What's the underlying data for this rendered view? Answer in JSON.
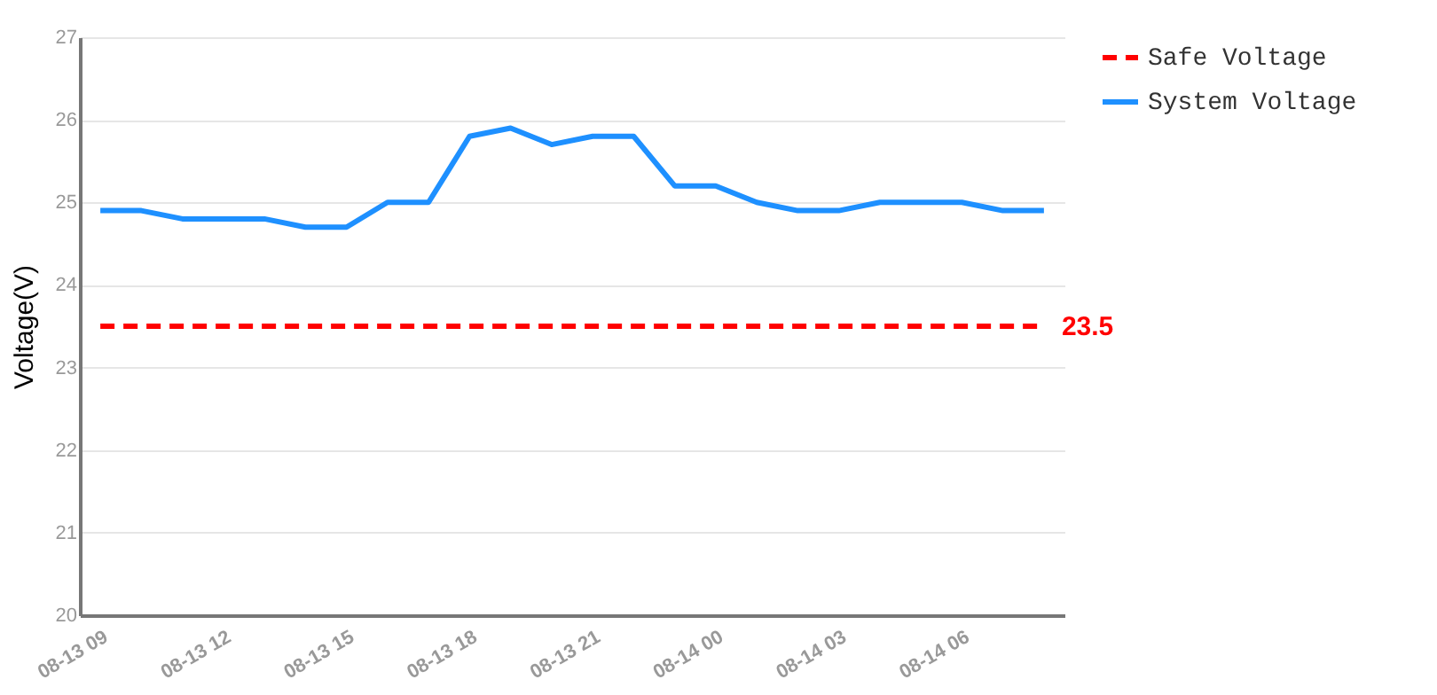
{
  "chart_data": {
    "type": "line",
    "ylabel": "Voltage(V)",
    "categories": [
      "08-13 09",
      null,
      null,
      "08-13 12",
      null,
      null,
      "08-13 15",
      null,
      null,
      "08-13 18",
      null,
      null,
      "08-13 21",
      null,
      null,
      "08-14 00",
      null,
      null,
      "08-14 03",
      null,
      null,
      "08-14 06",
      null,
      null
    ],
    "series": [
      {
        "name": "Safe Voltage",
        "color": "#ff0000",
        "line_style": "dashed",
        "values": [
          23.5,
          23.5,
          23.5,
          23.5,
          23.5,
          23.5,
          23.5,
          23.5,
          23.5,
          23.5,
          23.5,
          23.5,
          23.5,
          23.5,
          23.5,
          23.5,
          23.5,
          23.5,
          23.5,
          23.5,
          23.5,
          23.5,
          23.5,
          23.5
        ],
        "value_labels": [
          null,
          null,
          null,
          null,
          null,
          null,
          null,
          null,
          null,
          null,
          null,
          null,
          null,
          null,
          null,
          null,
          null,
          null,
          null,
          null,
          null,
          null,
          null,
          "23.5"
        ]
      },
      {
        "name": "System Voltage",
        "color": "#1e90ff",
        "line_style": "solid",
        "values": [
          24.9,
          24.9,
          24.8,
          24.8,
          24.8,
          24.7,
          24.7,
          25.0,
          25.0,
          25.8,
          25.9,
          25.7,
          25.8,
          25.8,
          25.2,
          25.2,
          25.0,
          24.9,
          24.9,
          25.0,
          25.0,
          25.0,
          24.9,
          24.9
        ]
      }
    ],
    "ylim": [
      20,
      27
    ],
    "yticks": [
      20,
      21,
      22,
      23,
      24,
      25,
      26,
      27
    ],
    "grid": "y",
    "legend": "top right",
    "marker": "none"
  }
}
